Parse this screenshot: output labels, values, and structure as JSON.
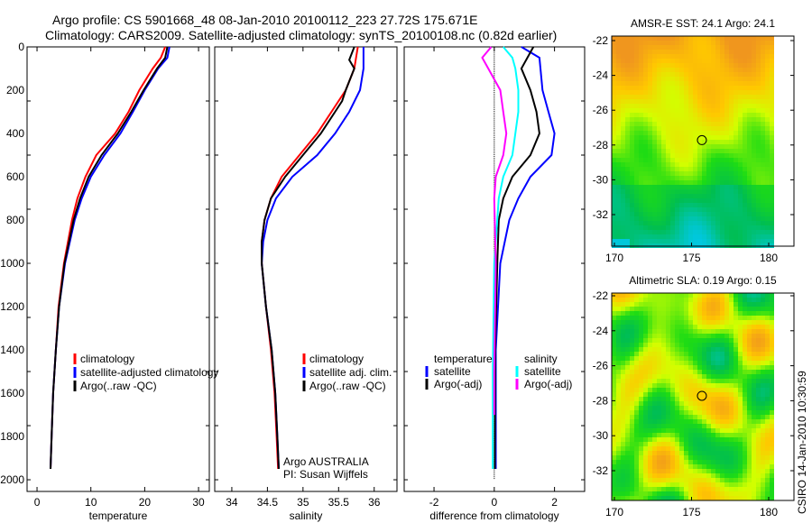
{
  "title_line1": "Argo profile: CS 5901668_48 08-Jan-2010 20100112_223 27.72S 175.671E",
  "title_line2": "Climatology: CARS2009. Satellite-adjusted climatology: synTS_20100108.nc (0.82d earlier)",
  "side_stamp": "CSIRO 14-Jan-2010 10:30:59",
  "credit_line1": "Argo AUSTRALIA",
  "credit_line2": "PI: Susan Wijffels",
  "colors": {
    "climatology": "#ff0000",
    "satellite": "#0000ff",
    "argo": "#000000",
    "sal_satellite": "#00ffff",
    "sal_argo": "#ff00ff"
  },
  "chart_data": [
    {
      "type": "line",
      "xlabel": "temperature",
      "ylabel": "",
      "xlim": [
        -1.85,
        32
      ],
      "ylim": [
        2054,
        0
      ],
      "xticks": [
        "0",
        "10",
        "20",
        "30"
      ],
      "xtick_values": [
        0,
        10,
        20,
        30
      ],
      "yticks": [
        "0",
        "200",
        "400",
        "600",
        "800",
        "1000",
        "1200",
        "1400",
        "1600",
        "1800",
        "2000"
      ],
      "ytick_values": [
        0,
        200,
        400,
        600,
        800,
        1000,
        1200,
        1400,
        1600,
        1800,
        2000
      ],
      "legend": [
        "climatology",
        "satellite-adjusted climatology",
        "Argo(..raw -QC)"
      ],
      "series": [
        {
          "name": "climatology",
          "color": "#ff0000",
          "depth": [
            0,
            50,
            100,
            200,
            300,
            400,
            500,
            600,
            700,
            800,
            1000,
            1200,
            1400,
            1600,
            1800,
            1950
          ],
          "values": [
            23.8,
            23,
            21.5,
            19,
            17,
            14.5,
            11,
            9,
            7.5,
            6.5,
            5,
            4,
            3.5,
            3,
            2.7,
            2.5
          ]
        },
        {
          "name": "satellite-adjusted climatology",
          "color": "#0000ff",
          "depth": [
            0,
            50,
            100,
            200,
            300,
            400,
            500,
            600,
            700,
            800,
            1000,
            1200,
            1400,
            1600,
            1800,
            1950
          ],
          "values": [
            24.6,
            24.2,
            22.5,
            20,
            17.8,
            15.5,
            12.5,
            10,
            8.3,
            7,
            5.2,
            4.1,
            3.5,
            3,
            2.7,
            2.5
          ]
        },
        {
          "name": "Argo(..raw -QC)",
          "color": "#000000",
          "depth": [
            0,
            50,
            100,
            200,
            300,
            400,
            500,
            600,
            700,
            800,
            1000,
            1200,
            1400,
            1600,
            1800,
            1950
          ],
          "values": [
            24.2,
            23.8,
            22.3,
            19.8,
            17.5,
            15,
            12,
            9.6,
            8,
            6.8,
            5.1,
            4.1,
            3.5,
            3,
            2.7,
            2.5
          ]
        }
      ]
    },
    {
      "type": "line",
      "xlabel": "salinity",
      "xlim": [
        33.76,
        36.32
      ],
      "ylim": [
        2054,
        0
      ],
      "xticks": [
        "34",
        "34.5",
        "35",
        "35.5",
        "36"
      ],
      "xtick_values": [
        34,
        34.5,
        35,
        35.5,
        36
      ],
      "legend": [
        "climatology",
        "satellite adj. clim.",
        "Argo(..raw -QC)"
      ],
      "series": [
        {
          "name": "climatology",
          "color": "#ff0000",
          "depth": [
            0,
            100,
            200,
            300,
            400,
            500,
            600,
            700,
            800,
            900,
            1000,
            1200,
            1400,
            1600,
            1800,
            1950
          ],
          "values": [
            35.77,
            35.72,
            35.6,
            35.4,
            35.2,
            34.95,
            34.7,
            34.55,
            34.46,
            34.42,
            34.42,
            34.48,
            34.55,
            34.6,
            34.63,
            34.65
          ]
        },
        {
          "name": "satellite adj. clim.",
          "color": "#0000ff",
          "depth": [
            0,
            100,
            200,
            300,
            400,
            500,
            600,
            700,
            800,
            900,
            1000,
            1200,
            1400,
            1600,
            1800,
            1950
          ],
          "values": [
            35.85,
            35.85,
            35.8,
            35.65,
            35.45,
            35.2,
            34.85,
            34.62,
            34.5,
            34.44,
            34.42,
            34.48,
            34.56,
            34.61,
            34.64,
            34.66
          ]
        },
        {
          "name": "Argo(..raw -QC)",
          "color": "#000000",
          "depth": [
            0,
            60,
            100,
            200,
            250,
            300,
            400,
            500,
            600,
            700,
            800,
            900,
            1000,
            1200,
            1400,
            1600,
            1800,
            1950
          ],
          "values": [
            35.72,
            35.65,
            35.72,
            35.6,
            35.55,
            35.45,
            35.25,
            35.0,
            34.75,
            34.55,
            34.46,
            34.42,
            34.42,
            34.48,
            34.56,
            34.61,
            34.64,
            34.66
          ]
        }
      ]
    },
    {
      "type": "line",
      "xlabel": "difference from climatology",
      "xlim": [
        -2.99,
        3
      ],
      "ylim": [
        2054,
        0
      ],
      "xticks": [
        "-2",
        "0",
        "2"
      ],
      "xtick_values": [
        -2,
        0,
        2
      ],
      "legend_headers": [
        "temperature",
        "salinity"
      ],
      "legend": [
        "satellite",
        "Argo(-adj)",
        "satellite",
        "Argo(-adj)"
      ],
      "series": [
        {
          "name": "temperature satellite",
          "color": "#0000ff",
          "depth": [
            0,
            50,
            200,
            300,
            400,
            500,
            600,
            700,
            800,
            1000,
            1400,
            1950
          ],
          "values": [
            0.9,
            1.5,
            1.6,
            1.8,
            2.0,
            1.9,
            1.2,
            0.8,
            0.5,
            0.2,
            0.05,
            0.05
          ]
        },
        {
          "name": "temperature Argo(-adj)",
          "color": "#000000",
          "depth": [
            0,
            100,
            200,
            300,
            400,
            500,
            600,
            700,
            800,
            1000,
            1400,
            1950
          ],
          "values": [
            1.3,
            0.9,
            1.2,
            1.4,
            1.5,
            1.2,
            0.6,
            0.3,
            0.15,
            0.1,
            0.03,
            0.02
          ]
        },
        {
          "name": "salinity satellite",
          "color": "#00ffff",
          "depth": [
            0,
            50,
            100,
            200,
            300,
            400,
            500,
            600,
            700,
            1000,
            1500,
            1950
          ],
          "values": [
            0.3,
            0.6,
            0.7,
            0.8,
            0.8,
            0.7,
            0.6,
            0.3,
            0.15,
            0.0,
            -0.05,
            -0.05
          ]
        },
        {
          "name": "salinity Argo(-adj)",
          "color": "#ff00ff",
          "depth": [
            0,
            50,
            100,
            200,
            300,
            400,
            500,
            600,
            700,
            1000,
            1500,
            1700
          ],
          "values": [
            -0.1,
            -0.4,
            -0.2,
            0.2,
            0.3,
            0.4,
            0.3,
            0.05,
            0.0,
            0.05,
            0.0,
            0.0
          ]
        }
      ]
    },
    {
      "type": "heatmap",
      "title": "AMSR-E SST: 24.1 Argo: 24.1",
      "xlim": [
        170,
        181.6
      ],
      "ylim": [
        -33.6,
        -21.5
      ],
      "xticks": [
        "170",
        "175",
        "180"
      ],
      "xtick_values": [
        170,
        175,
        180
      ],
      "yticks": [
        "-22",
        "-24",
        "-26",
        "-28",
        "-30",
        "-32"
      ],
      "ytick_values": [
        -22,
        -24,
        -26,
        -28,
        -30,
        -32
      ],
      "marker": {
        "lon": 175.671,
        "lat": -27.72
      }
    },
    {
      "type": "heatmap",
      "title": "Altimetric SLA: 0.19 Argo: 0.15",
      "xlim": [
        170,
        181.6
      ],
      "ylim": [
        -33.6,
        -21.7
      ],
      "xticks": [
        "170",
        "175",
        "180"
      ],
      "xtick_values": [
        170,
        175,
        180
      ],
      "yticks": [
        "-22",
        "-24",
        "-26",
        "-28",
        "-30",
        "-32"
      ],
      "ytick_values": [
        -22,
        -24,
        -26,
        -28,
        -30,
        -32
      ],
      "marker": {
        "lon": 175.671,
        "lat": -27.72
      }
    }
  ]
}
